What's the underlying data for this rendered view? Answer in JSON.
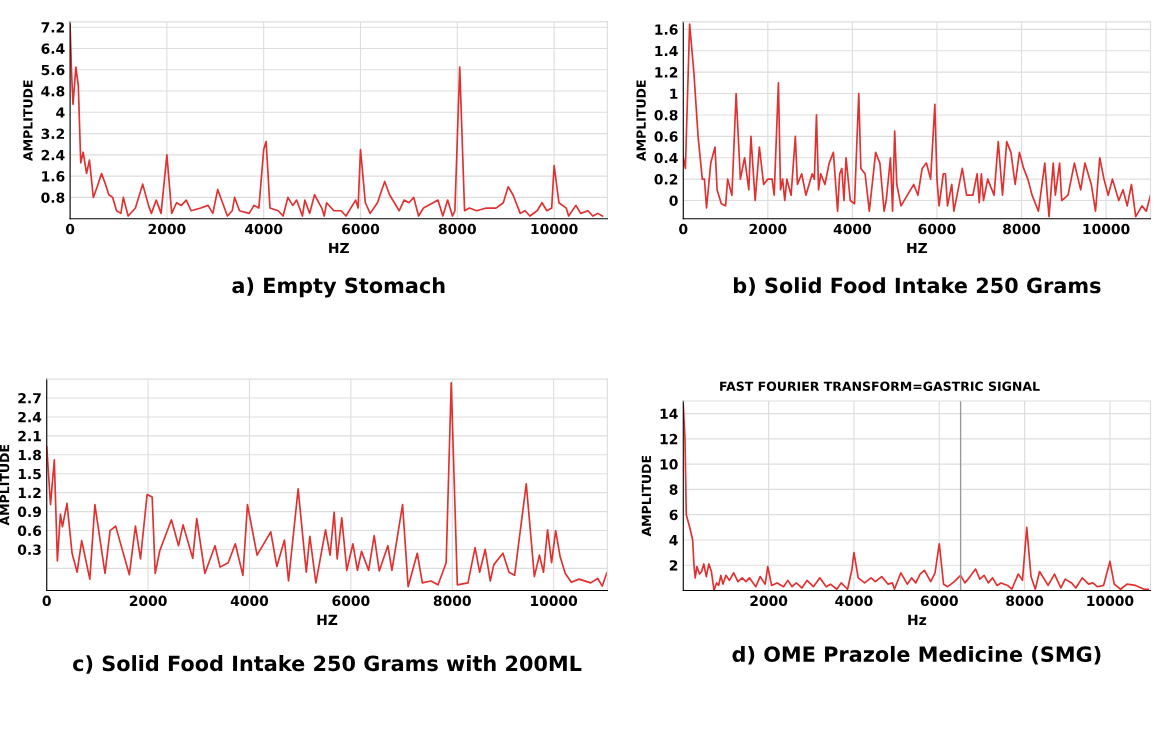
{
  "chart_data": [
    {
      "type": "line",
      "title": "a) Empty Stomach",
      "xlabel": "HZ",
      "ylabel": "AMPLITUDE",
      "grid": true,
      "legend": false,
      "xlim": [
        0,
        11100
      ],
      "xticks": [
        0,
        2000,
        4000,
        6000,
        8000,
        10000
      ],
      "ylim": [
        0,
        7.4
      ],
      "yticks": [
        0.8,
        1.6,
        2.4,
        3.2,
        4,
        4.8,
        5.6,
        6.4,
        7.2
      ],
      "series": [
        {
          "color": "#e03030",
          "x": [
            0,
            30,
            60,
            120,
            170,
            220,
            270,
            340,
            400,
            480,
            560,
            650,
            730,
            800,
            880,
            960,
            1050,
            1100,
            1200,
            1350,
            1500,
            1620,
            1680,
            1780,
            1880,
            2000,
            2100,
            2200,
            2300,
            2400,
            2500,
            2700,
            2850,
            2950,
            3050,
            3150,
            3250,
            3350,
            3400,
            3500,
            3700,
            3800,
            3900,
            4000,
            4050,
            4130,
            4300,
            4400,
            4500,
            4600,
            4680,
            4800,
            4850,
            4950,
            5050,
            5200,
            5250,
            5300,
            5450,
            5600,
            5700,
            5900,
            5950,
            6000,
            6100,
            6200,
            6350,
            6500,
            6600,
            6800,
            6900,
            7000,
            7100,
            7200,
            7300,
            7500,
            7600,
            7700,
            7800,
            7900,
            7950,
            8050,
            8150,
            8250,
            8400,
            8600,
            8800,
            8950,
            9050,
            9150,
            9300,
            9400,
            9500,
            9650,
            9750,
            9850,
            9950,
            10000,
            10100,
            10250,
            10300,
            10450,
            10550,
            10700,
            10800,
            10900,
            11000
          ],
          "values": [
            7.3,
            5.5,
            4.3,
            5.7,
            5.0,
            2.1,
            2.5,
            1.7,
            2.2,
            0.8,
            1.2,
            1.7,
            1.3,
            0.9,
            0.8,
            0.3,
            0.2,
            0.8,
            0.1,
            0.4,
            1.3,
            0.5,
            0.2,
            0.7,
            0.2,
            2.4,
            0.2,
            0.6,
            0.5,
            0.7,
            0.3,
            0.4,
            0.5,
            0.2,
            1.1,
            0.6,
            0.1,
            0.3,
            0.8,
            0.3,
            0.2,
            0.5,
            0.4,
            2.6,
            2.9,
            0.4,
            0.3,
            0.1,
            0.8,
            0.5,
            0.7,
            0.1,
            0.7,
            0.2,
            0.9,
            0.4,
            0.1,
            0.6,
            0.3,
            0.3,
            0.1,
            0.7,
            0.4,
            2.6,
            0.6,
            0.2,
            0.6,
            1.4,
            0.9,
            0.3,
            0.7,
            0.6,
            0.8,
            0.1,
            0.4,
            0.6,
            0.7,
            0.1,
            0.7,
            0.1,
            0.3,
            5.7,
            0.3,
            0.4,
            0.3,
            0.4,
            0.4,
            0.6,
            1.2,
            0.9,
            0.2,
            0.3,
            0.1,
            0.3,
            0.6,
            0.3,
            0.4,
            2.0,
            0.6,
            0.4,
            0.1,
            0.5,
            0.2,
            0.3,
            0.1,
            0.2,
            0.1
          ]
        }
      ]
    },
    {
      "type": "line",
      "title": "b) Solid Food Intake 250 Grams",
      "xlabel": "HZ",
      "ylabel": "AMPLITUDE",
      "grid": true,
      "legend": false,
      "xlim": [
        0,
        11050
      ],
      "xticks": [
        0,
        2000,
        4000,
        6000,
        8000,
        10000
      ],
      "ylim": [
        -0.17,
        1.67
      ],
      "yticks": [
        0,
        0.2,
        0.4,
        0.6,
        0.8,
        1,
        1.2,
        1.4,
        1.6
      ],
      "series": [
        {
          "color": "#e03030",
          "x": [
            0,
            50,
            150,
            250,
            350,
            450,
            500,
            550,
            650,
            750,
            800,
            900,
            1000,
            1050,
            1150,
            1250,
            1350,
            1450,
            1550,
            1600,
            1700,
            1800,
            1900,
            2000,
            2100,
            2150,
            2250,
            2300,
            2350,
            2400,
            2450,
            2550,
            2650,
            2700,
            2800,
            2900,
            3050,
            3100,
            3150,
            3200,
            3250,
            3350,
            3450,
            3550,
            3650,
            3700,
            3750,
            3800,
            3850,
            3950,
            4050,
            4150,
            4200,
            4300,
            4400,
            4550,
            4650,
            4750,
            4800,
            4900,
            4950,
            5000,
            5050,
            5150,
            5300,
            5450,
            5550,
            5650,
            5750,
            5850,
            5950,
            6000,
            6050,
            6150,
            6200,
            6250,
            6350,
            6400,
            6500,
            6600,
            6700,
            6850,
            6950,
            7000,
            7050,
            7100,
            7200,
            7350,
            7450,
            7550,
            7650,
            7750,
            7850,
            7950,
            8050,
            8150,
            8250,
            8400,
            8550,
            8650,
            8750,
            8800,
            8900,
            8950,
            9100,
            9250,
            9400,
            9500,
            9650,
            9750,
            9850,
            9950,
            10050,
            10150,
            10300,
            10400,
            10500,
            10600,
            10700,
            10850,
            10950,
            11050
          ],
          "values": [
            0.4,
            0.3,
            1.65,
            1.2,
            0.6,
            0.2,
            0.2,
            -0.07,
            0.35,
            0.5,
            0.1,
            -0.03,
            -0.05,
            0.2,
            0.05,
            1.0,
            0.2,
            0.4,
            0.1,
            0.6,
            0.0,
            0.5,
            0.15,
            0.2,
            0.2,
            0.05,
            1.1,
            0.1,
            0.2,
            0.0,
            0.2,
            0.05,
            0.6,
            0.15,
            0.25,
            0.05,
            0.25,
            0.2,
            0.8,
            0.1,
            0.25,
            0.15,
            0.35,
            0.45,
            -0.1,
            0.25,
            0.3,
            0.0,
            0.4,
            0.0,
            -0.03,
            1.0,
            0.3,
            0.25,
            -0.1,
            0.45,
            0.35,
            -0.1,
            0.0,
            0.4,
            -0.1,
            0.65,
            0.15,
            -0.05,
            0.05,
            0.15,
            0.05,
            0.3,
            0.35,
            0.2,
            0.9,
            0.2,
            -0.05,
            0.25,
            0.25,
            -0.05,
            0.15,
            -0.1,
            0.1,
            0.3,
            0.05,
            0.05,
            0.25,
            -0.02,
            0.25,
            0.0,
            0.2,
            0.05,
            0.55,
            0.05,
            0.55,
            0.45,
            0.15,
            0.45,
            0.3,
            0.2,
            0.05,
            -0.1,
            0.35,
            -0.15,
            0.35,
            0.05,
            0.35,
            0.0,
            0.05,
            0.35,
            0.1,
            0.35,
            0.15,
            -0.1,
            0.4,
            0.2,
            0.05,
            0.2,
            0.0,
            0.1,
            -0.05,
            0.15,
            -0.15,
            -0.05,
            -0.1,
            0.05
          ]
        }
      ]
    },
    {
      "type": "line",
      "title": "c) Solid Food Intake 250 Grams with 200ML",
      "xlabel": "HZ",
      "ylabel": "AMPLITUDE",
      "grid": true,
      "legend": false,
      "xlim": [
        0,
        11060
      ],
      "xticks": [
        0,
        2000,
        4000,
        6000,
        8000,
        10000
      ],
      "ylim": [
        -0.35,
        3.0
      ],
      "yticks": [
        {
          "value": 0,
          "label": null
        },
        0.3,
        0.6,
        0.9,
        1.2,
        1.5,
        1.8,
        2.1,
        2.4,
        2.7
      ],
      "series": [
        {
          "color": "#e03030",
          "x": [
            0,
            75,
            150,
            210,
            270,
            310,
            400,
            500,
            600,
            690,
            850,
            950,
            1150,
            1250,
            1360,
            1630,
            1750,
            1850,
            1980,
            2080,
            2140,
            2230,
            2460,
            2600,
            2690,
            2880,
            2960,
            3120,
            3320,
            3420,
            3580,
            3720,
            3870,
            3960,
            4150,
            4420,
            4540,
            4690,
            4770,
            4960,
            5120,
            5190,
            5310,
            5500,
            5590,
            5670,
            5730,
            5820,
            5920,
            6040,
            6130,
            6210,
            6350,
            6460,
            6560,
            6730,
            6810,
            7020,
            7130,
            7310,
            7410,
            7580,
            7720,
            7880,
            7980,
            8100,
            8310,
            8450,
            8540,
            8650,
            8750,
            8820,
            9000,
            9120,
            9230,
            9460,
            9620,
            9720,
            9800,
            9880,
            9960,
            10040,
            10130,
            10230,
            10350,
            10500,
            10730,
            10870,
            10960,
            11050
          ],
          "values": [
            1.93,
            1.01,
            1.72,
            0.12,
            0.86,
            0.66,
            1.03,
            0.24,
            -0.06,
            0.44,
            -0.17,
            1.01,
            -0.08,
            0.6,
            0.67,
            -0.1,
            0.67,
            0.15,
            1.17,
            1.13,
            -0.08,
            0.28,
            0.77,
            0.36,
            0.69,
            0.16,
            0.79,
            -0.08,
            0.36,
            0.02,
            0.09,
            0.39,
            -0.11,
            1.01,
            0.21,
            0.58,
            0.03,
            0.45,
            -0.2,
            1.26,
            -0.06,
            0.51,
            -0.23,
            0.61,
            0.21,
            0.89,
            0.15,
            0.8,
            -0.03,
            0.39,
            -0.03,
            0.27,
            -0.03,
            0.52,
            -0.04,
            0.36,
            -0.03,
            1.01,
            -0.29,
            0.24,
            -0.23,
            -0.2,
            -0.26,
            0.09,
            2.94,
            -0.26,
            -0.23,
            0.33,
            -0.06,
            0.3,
            -0.2,
            0.06,
            0.24,
            -0.06,
            -0.11,
            1.34,
            -0.13,
            0.21,
            -0.06,
            0.61,
            0.09,
            0.6,
            0.18,
            -0.08,
            -0.22,
            -0.17,
            -0.23,
            -0.16,
            -0.28,
            -0.07
          ]
        }
      ]
    },
    {
      "type": "line",
      "title": "d) OME Prazole Medicine (SMG)",
      "subtitle": "FAST FOURIER TRANSFORM=GASTRIC SIGNAL",
      "xlabel": "Hz",
      "ylabel": "AMPLITUDE",
      "grid": true,
      "legend": false,
      "xlim": [
        0,
        10950
      ],
      "xticks": [
        2000,
        4000,
        6000,
        8000,
        10000
      ],
      "ylim": [
        0,
        15
      ],
      "yticks": [
        2,
        4,
        6,
        8,
        10,
        12,
        14
      ],
      "ref_lines": [
        {
          "axis": "x",
          "value": 6500,
          "label": null,
          "color": "#999999"
        }
      ],
      "series": [
        {
          "color": "#e03030",
          "x": [
            0,
            40,
            70,
            150,
            220,
            250,
            280,
            320,
            380,
            430,
            480,
            540,
            600,
            660,
            720,
            780,
            830,
            880,
            930,
            1000,
            1080,
            1180,
            1280,
            1380,
            1470,
            1550,
            1700,
            1800,
            1920,
            1980,
            2070,
            2200,
            2350,
            2450,
            2550,
            2650,
            2780,
            2900,
            3050,
            3200,
            3350,
            3450,
            3600,
            3700,
            3850,
            3950,
            4000,
            4100,
            4250,
            4400,
            4500,
            4650,
            4800,
            4900,
            4950,
            5100,
            5250,
            5350,
            5450,
            5550,
            5650,
            5800,
            5900,
            6000,
            6100,
            6200,
            6350,
            6500,
            6600,
            6700,
            6850,
            6950,
            7050,
            7150,
            7250,
            7350,
            7450,
            7600,
            7700,
            7850,
            7950,
            8050,
            8150,
            8250,
            8350,
            8550,
            8700,
            8850,
            8950,
            9100,
            9200,
            9350,
            9500,
            9600,
            9700,
            9850,
            10000,
            10100,
            10250,
            10400,
            10600,
            10800,
            10900
          ],
          "values": [
            14.7,
            12,
            6,
            5,
            4,
            2,
            1.0,
            1.9,
            1.3,
            1.5,
            2.1,
            1.1,
            2.1,
            1.5,
            0.0,
            0.6,
            0.4,
            1.2,
            0.5,
            1.2,
            0.8,
            1.4,
            0.7,
            1.0,
            0.7,
            1.0,
            0.3,
            1.1,
            0.5,
            1.9,
            0.4,
            0.6,
            0.3,
            0.8,
            0.3,
            0.6,
            0.2,
            0.8,
            0.3,
            1.0,
            0.3,
            0.5,
            0.1,
            0.6,
            0.1,
            1.6,
            3.0,
            1.0,
            0.6,
            1.0,
            0.7,
            1.1,
            0.5,
            0.6,
            0.1,
            1.4,
            0.5,
            1.0,
            0.6,
            1.3,
            1.6,
            0.7,
            1.4,
            3.7,
            0.5,
            0.3,
            0.7,
            1.2,
            0.6,
            1.0,
            1.7,
            0.9,
            1.2,
            0.6,
            1.0,
            0.4,
            0.6,
            0.4,
            0.1,
            1.3,
            0.8,
            5.0,
            1.1,
            0.1,
            1.5,
            0.4,
            1.3,
            0.2,
            0.9,
            0.6,
            0.2,
            1.0,
            0.5,
            0.6,
            0.3,
            0.4,
            2.3,
            0.5,
            0.1,
            0.5,
            0.4,
            0.1,
            0.1
          ]
        }
      ]
    }
  ]
}
